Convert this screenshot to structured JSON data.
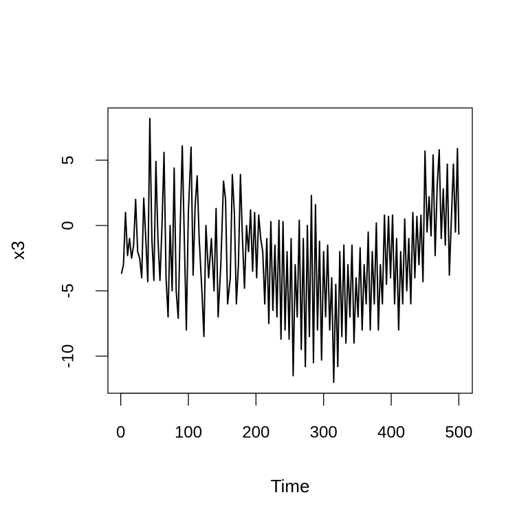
{
  "chart_data": {
    "type": "line",
    "x_label": "Time",
    "y_label": "x3",
    "color": "#000000",
    "x": [
      1,
      4,
      7,
      10,
      13,
      16,
      19,
      22,
      25,
      28,
      31,
      34,
      37,
      40,
      43,
      46,
      49,
      52,
      55,
      58,
      61,
      64,
      67,
      70,
      73,
      76,
      79,
      82,
      85,
      88,
      91,
      94,
      97,
      100,
      104,
      107,
      110,
      113,
      116,
      120,
      123,
      126,
      130,
      134,
      138,
      141,
      144,
      148,
      152,
      155,
      158,
      162,
      165,
      168,
      171,
      174,
      177,
      180,
      183,
      186,
      189,
      192,
      195,
      198,
      201,
      204,
      207,
      210,
      213,
      216,
      219,
      222,
      225,
      228,
      231,
      234,
      237,
      240,
      243,
      246,
      249,
      252,
      255,
      258,
      261,
      264,
      267,
      270,
      273,
      276,
      279,
      282,
      285,
      288,
      291,
      294,
      297,
      300,
      303,
      306,
      309,
      312,
      315,
      318,
      321,
      324,
      327,
      330,
      333,
      336,
      339,
      342,
      345,
      348,
      351,
      354,
      357,
      360,
      363,
      366,
      369,
      372,
      375,
      378,
      381,
      384,
      387,
      390,
      393,
      396,
      399,
      402,
      405,
      408,
      411,
      414,
      417,
      420,
      423,
      426,
      429,
      432,
      435,
      438,
      441,
      444,
      447,
      450,
      453,
      456,
      459,
      462,
      465,
      468,
      471,
      474,
      477,
      480,
      483,
      486,
      489,
      492,
      495,
      498,
      500
    ],
    "values": [
      -3.7,
      -3,
      1,
      -2.3,
      -1,
      -2.5,
      -1.5,
      2,
      -2,
      -2.5,
      -4,
      2.1,
      -1,
      -4.3,
      8.2,
      -1,
      -4.2,
      4.9,
      -1,
      -4.2,
      0,
      5.6,
      -4,
      -7,
      0,
      -5,
      4.4,
      -5,
      -7.1,
      0,
      6.1,
      -1,
      -8,
      1,
      6,
      -3.8,
      1.5,
      3.8,
      -1,
      -5,
      -8.5,
      0,
      -4,
      -1,
      -5,
      1.3,
      -7,
      -3,
      3.4,
      2,
      -6,
      -4,
      3.9,
      1,
      -6,
      -3,
      3.9,
      -1,
      -4.8,
      0,
      -2,
      1.2,
      -3.5,
      1,
      -4,
      0.8,
      -1,
      -2,
      -6,
      -1,
      -7.5,
      0.3,
      -6.5,
      -1.5,
      -7,
      0.4,
      -8.7,
      0.3,
      -8,
      -2,
      -8.7,
      -1,
      -11.5,
      -3,
      -7,
      0.4,
      -9.5,
      -1,
      -10.8,
      0,
      -8.5,
      2.3,
      -10.5,
      1.6,
      -8,
      -1.2,
      -10.3,
      -2,
      -7,
      -1.5,
      -8,
      -4,
      -12,
      -4.5,
      -10.8,
      -2,
      -8.5,
      -1.5,
      -9,
      -3,
      -7,
      -1.5,
      -9,
      -4,
      -7,
      -1.7,
      -8,
      -3,
      -6,
      -0.5,
      -8,
      -2,
      -6,
      0.2,
      -8,
      -3,
      -6,
      0.8,
      -4.5,
      0.7,
      -4,
      0.8,
      -6,
      -1,
      -8,
      -2,
      -6,
      0.5,
      -5,
      -1,
      -6,
      1,
      -4,
      0.7,
      -3,
      0.8,
      -4.3,
      5.7,
      -0.5,
      2.2,
      -0.8,
      5.4,
      -2.3,
      3,
      5.8,
      -1,
      2.8,
      -1.5,
      4.7,
      -3.8,
      0.5,
      4.7,
      -0.5,
      5.9,
      -0.7
    ],
    "xlim": [
      -18.96,
      519.96
    ],
    "ylim": [
      -12.84,
      9.0
    ],
    "xticks": [
      0,
      100,
      200,
      300,
      400,
      500
    ],
    "yticks": [
      -10,
      -5,
      0,
      5
    ]
  }
}
